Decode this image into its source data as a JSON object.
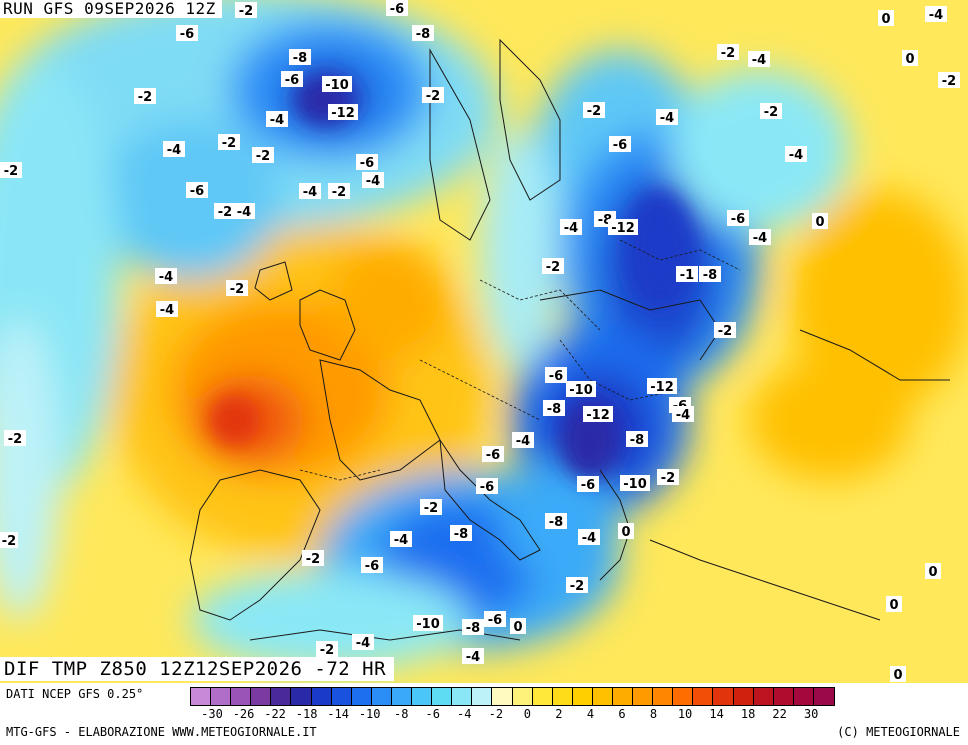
{
  "header": {
    "run_title": "RUN GFS 09SEP2026 12Z",
    "field_title": "DIF TMP Z850 12Z12SEP2026 -72 HR"
  },
  "footer": {
    "source": "DATI NCEP GFS 0.25°",
    "credit_left": "MTG-GFS - ELABORAZIONE WWW.METEOGIORNALE.IT",
    "credit_right": "(C) METEOGIORNALE"
  },
  "legend": {
    "colors": [
      "#c88ad8",
      "#b06ec8",
      "#9a54b8",
      "#7a3aa0",
      "#4a2a9a",
      "#2a2aa8",
      "#1a3ac8",
      "#1a52e0",
      "#1e6ef0",
      "#2a8ef6",
      "#3aaaf8",
      "#4ac6f8",
      "#5edcf4",
      "#8ae8f6",
      "#bdf2f8",
      "#fffbc0",
      "#fff27a",
      "#ffe83a",
      "#ffdc1a",
      "#ffd000",
      "#ffc000",
      "#ffac00",
      "#ff9a00",
      "#ff8600",
      "#ff6c00",
      "#f24e08",
      "#e2340c",
      "#d0200e",
      "#be1420",
      "#b00c2e",
      "#a4083c",
      "#9a0a4a"
    ],
    "tick_labels": [
      "-30",
      "-26",
      "-22",
      "-18",
      "-14",
      "-10",
      "-8",
      "-6",
      "-4",
      "-2",
      "0",
      "2",
      "4",
      "6",
      "8",
      "10",
      "14",
      "18",
      "22",
      "30"
    ]
  },
  "map": {
    "contour_labels": [
      "-6",
      "-8",
      "-6",
      "-10",
      "-12",
      "-8",
      "-6",
      "-2",
      "-4",
      "-2",
      "-4",
      "-2",
      "-6",
      "-4",
      "-2",
      "-6",
      "-2",
      "-4",
      "-4",
      "-2",
      "-2",
      "-2",
      "-4",
      "0",
      "-4",
      "-2",
      "-4",
      "-2",
      "0",
      "-2",
      "-4",
      "-6",
      "-2",
      "-8",
      "-12",
      "-4",
      "-6",
      "-4",
      "0",
      "-4",
      "-1",
      "-8",
      "-2",
      "-6",
      "-10",
      "-12",
      "-8",
      "-12",
      "-6",
      "-4",
      "-4",
      "-8",
      "-6",
      "-6",
      "-10",
      "-2",
      "-6",
      "-8",
      "-4",
      "0",
      "-2",
      "-8",
      "-4",
      "-6",
      "-4",
      "-10",
      "-2",
      "-6",
      "-8",
      "0",
      "-2",
      "-4",
      "-4",
      "0",
      "0",
      "0",
      "-2",
      "-2",
      "-2",
      "-2",
      "-2"
    ]
  }
}
